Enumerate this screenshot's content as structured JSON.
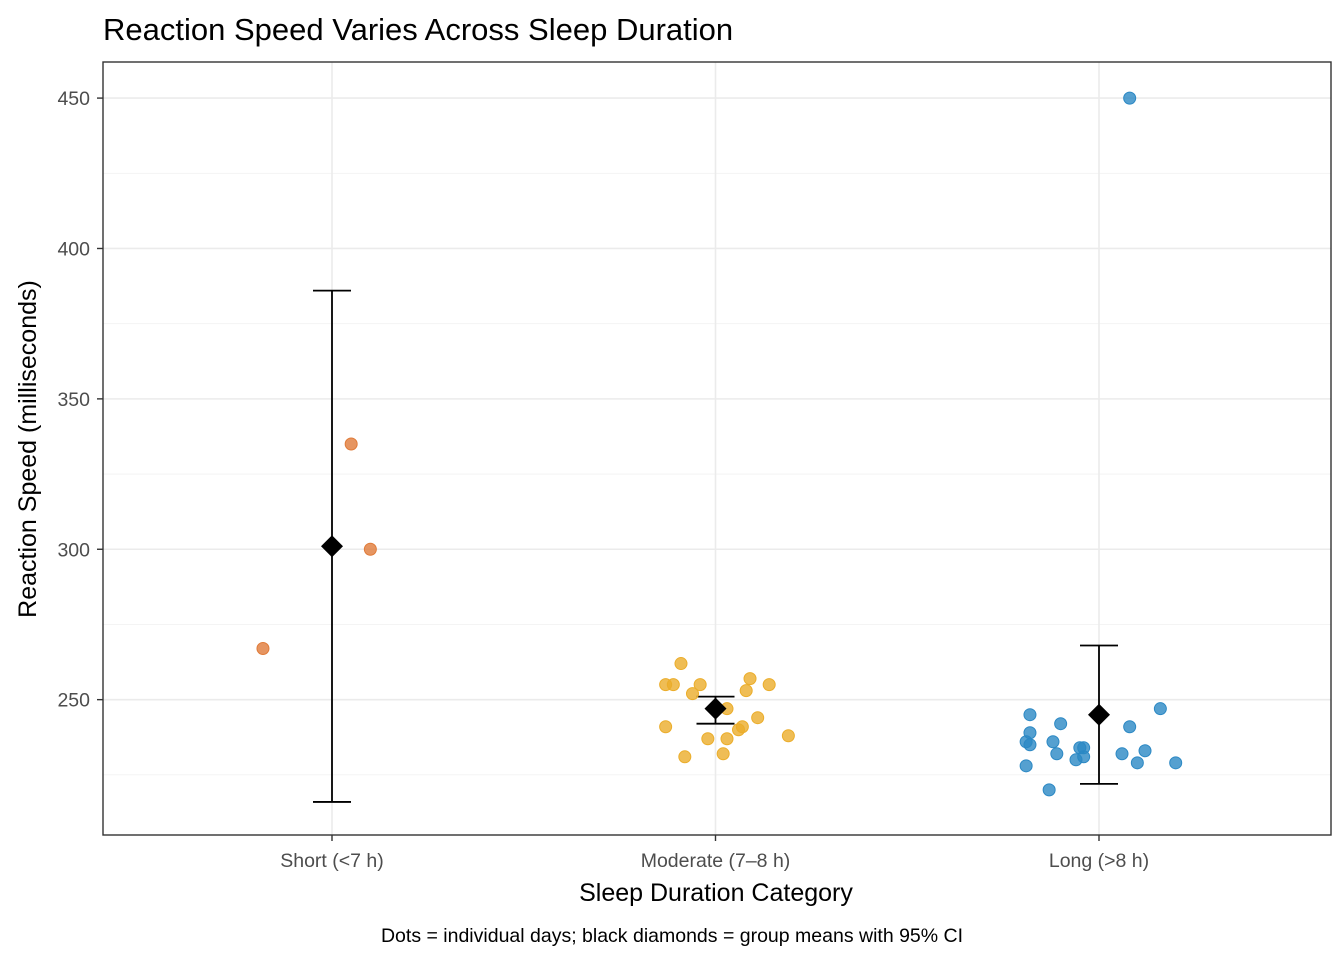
{
  "chart_data": {
    "type": "scatter",
    "title": "Reaction Speed Varies Across Sleep Duration",
    "xlabel": "Sleep Duration Category",
    "ylabel": "Reaction Speed (milliseconds)",
    "caption": "Dots = individual days; black diamonds = group means with 95% CI",
    "categories": [
      "Short (<7 h)",
      "Moderate (7–8 h)",
      "Long (>8 h)"
    ],
    "ylim": [
      205,
      462
    ],
    "yticks": [
      250,
      300,
      350,
      400,
      450
    ],
    "yticks_minor": [
      225,
      275,
      325,
      375,
      425
    ],
    "grid": true,
    "legend": "none",
    "colors": {
      "Short (<7 h)": "#E07B39",
      "Moderate (7–8 h)": "#EBAD2A",
      "Long (>8 h)": "#2B88C4",
      "mean": "#000000"
    },
    "points": [
      {
        "category": "Short (<7 h)",
        "jitter": 0.05,
        "y": 335
      },
      {
        "category": "Short (<7 h)",
        "jitter": 0.1,
        "y": 300
      },
      {
        "category": "Short (<7 h)",
        "jitter": -0.18,
        "y": 267
      },
      {
        "category": "Moderate (7–8 h)",
        "jitter": -0.09,
        "y": 262
      },
      {
        "category": "Moderate (7–8 h)",
        "jitter": -0.13,
        "y": 255
      },
      {
        "category": "Moderate (7–8 h)",
        "jitter": -0.11,
        "y": 255
      },
      {
        "category": "Moderate (7–8 h)",
        "jitter": -0.04,
        "y": 255
      },
      {
        "category": "Moderate (7–8 h)",
        "jitter": -0.06,
        "y": 252
      },
      {
        "category": "Moderate (7–8 h)",
        "jitter": 0.09,
        "y": 257
      },
      {
        "category": "Moderate (7–8 h)",
        "jitter": 0.14,
        "y": 255
      },
      {
        "category": "Moderate (7–8 h)",
        "jitter": 0.08,
        "y": 253
      },
      {
        "category": "Moderate (7–8 h)",
        "jitter": 0.03,
        "y": 247
      },
      {
        "category": "Moderate (7–8 h)",
        "jitter": 0.11,
        "y": 244
      },
      {
        "category": "Moderate (7–8 h)",
        "jitter": 0.07,
        "y": 241
      },
      {
        "category": "Moderate (7–8 h)",
        "jitter": -0.13,
        "y": 241
      },
      {
        "category": "Moderate (7–8 h)",
        "jitter": 0.06,
        "y": 240
      },
      {
        "category": "Moderate (7–8 h)",
        "jitter": 0.19,
        "y": 238
      },
      {
        "category": "Moderate (7–8 h)",
        "jitter": -0.02,
        "y": 237
      },
      {
        "category": "Moderate (7–8 h)",
        "jitter": 0.03,
        "y": 237
      },
      {
        "category": "Moderate (7–8 h)",
        "jitter": -0.08,
        "y": 231
      },
      {
        "category": "Moderate (7–8 h)",
        "jitter": 0.02,
        "y": 232
      },
      {
        "category": "Long (>8 h)",
        "jitter": 0.08,
        "y": 450
      },
      {
        "category": "Long (>8 h)",
        "jitter": 0.16,
        "y": 247
      },
      {
        "category": "Long (>8 h)",
        "jitter": -0.18,
        "y": 245
      },
      {
        "category": "Long (>8 h)",
        "jitter": -0.1,
        "y": 242
      },
      {
        "category": "Long (>8 h)",
        "jitter": 0.08,
        "y": 241
      },
      {
        "category": "Long (>8 h)",
        "jitter": -0.18,
        "y": 239
      },
      {
        "category": "Long (>8 h)",
        "jitter": -0.19,
        "y": 236
      },
      {
        "category": "Long (>8 h)",
        "jitter": -0.18,
        "y": 235
      },
      {
        "category": "Long (>8 h)",
        "jitter": -0.12,
        "y": 236
      },
      {
        "category": "Long (>8 h)",
        "jitter": -0.04,
        "y": 234
      },
      {
        "category": "Long (>8 h)",
        "jitter": -0.05,
        "y": 234
      },
      {
        "category": "Long (>8 h)",
        "jitter": -0.11,
        "y": 232
      },
      {
        "category": "Long (>8 h)",
        "jitter": -0.04,
        "y": 231
      },
      {
        "category": "Long (>8 h)",
        "jitter": -0.06,
        "y": 230
      },
      {
        "category": "Long (>8 h)",
        "jitter": 0.06,
        "y": 232
      },
      {
        "category": "Long (>8 h)",
        "jitter": 0.12,
        "y": 233
      },
      {
        "category": "Long (>8 h)",
        "jitter": 0.1,
        "y": 229
      },
      {
        "category": "Long (>8 h)",
        "jitter": 0.2,
        "y": 229
      },
      {
        "category": "Long (>8 h)",
        "jitter": -0.19,
        "y": 228
      },
      {
        "category": "Long (>8 h)",
        "jitter": -0.13,
        "y": 220
      }
    ],
    "means": [
      {
        "category": "Short (<7 h)",
        "mean": 301,
        "ci_low": 216,
        "ci_high": 386
      },
      {
        "category": "Moderate (7–8 h)",
        "mean": 247,
        "ci_low": 242,
        "ci_high": 251
      },
      {
        "category": "Long (>8 h)",
        "mean": 245,
        "ci_low": 222,
        "ci_high": 268
      }
    ]
  }
}
